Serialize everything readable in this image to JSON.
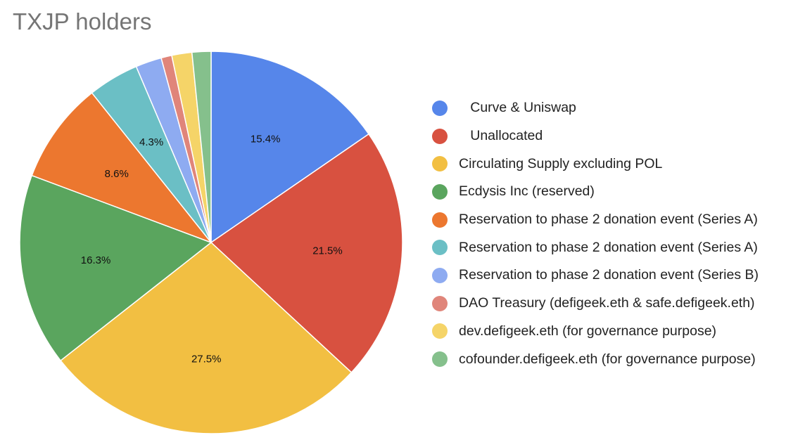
{
  "chart_data": {
    "type": "pie",
    "title": "TXJP holders",
    "start_angle_deg": 0,
    "direction": "clockwise",
    "legend_position": "right",
    "slices": [
      {
        "name": "   Curve & Uniswap",
        "value": 15.4,
        "label": "15.4%",
        "color": "#5686ea"
      },
      {
        "name": "   Unallocated",
        "value": 21.5,
        "label": "21.5%",
        "color": "#d85140"
      },
      {
        "name": "Circulating Supply excluding POL",
        "value": 27.5,
        "label": "27.5%",
        "color": "#f2bf42"
      },
      {
        "name": "Ecdysis Inc (reserved)",
        "value": 16.3,
        "label": "16.3%",
        "color": "#5aa55e"
      },
      {
        "name": "Reservation to phase 2 donation event (Series A)",
        "value": 8.6,
        "label": "8.6%",
        "color": "#ec772f"
      },
      {
        "name": "Reservation to phase 2 donation event (Series A)",
        "value": 4.3,
        "label": "4.3%",
        "color": "#6bbfc5"
      },
      {
        "name": "Reservation to phase 2 donation event (Series B)",
        "value": 2.2,
        "label": "",
        "color": "#8eabf1"
      },
      {
        "name": "DAO Treasury (defigeek.eth & safe.defigeek.eth)",
        "value": 0.9,
        "label": "",
        "color": "#e0857a"
      },
      {
        "name": "dev.defigeek.eth (for governance purpose)",
        "value": 1.7,
        "label": "",
        "color": "#f5d468"
      },
      {
        "name": "cofounder.defigeek.eth (for governance purpose)",
        "value": 1.6,
        "label": "",
        "color": "#85c08c"
      }
    ]
  }
}
